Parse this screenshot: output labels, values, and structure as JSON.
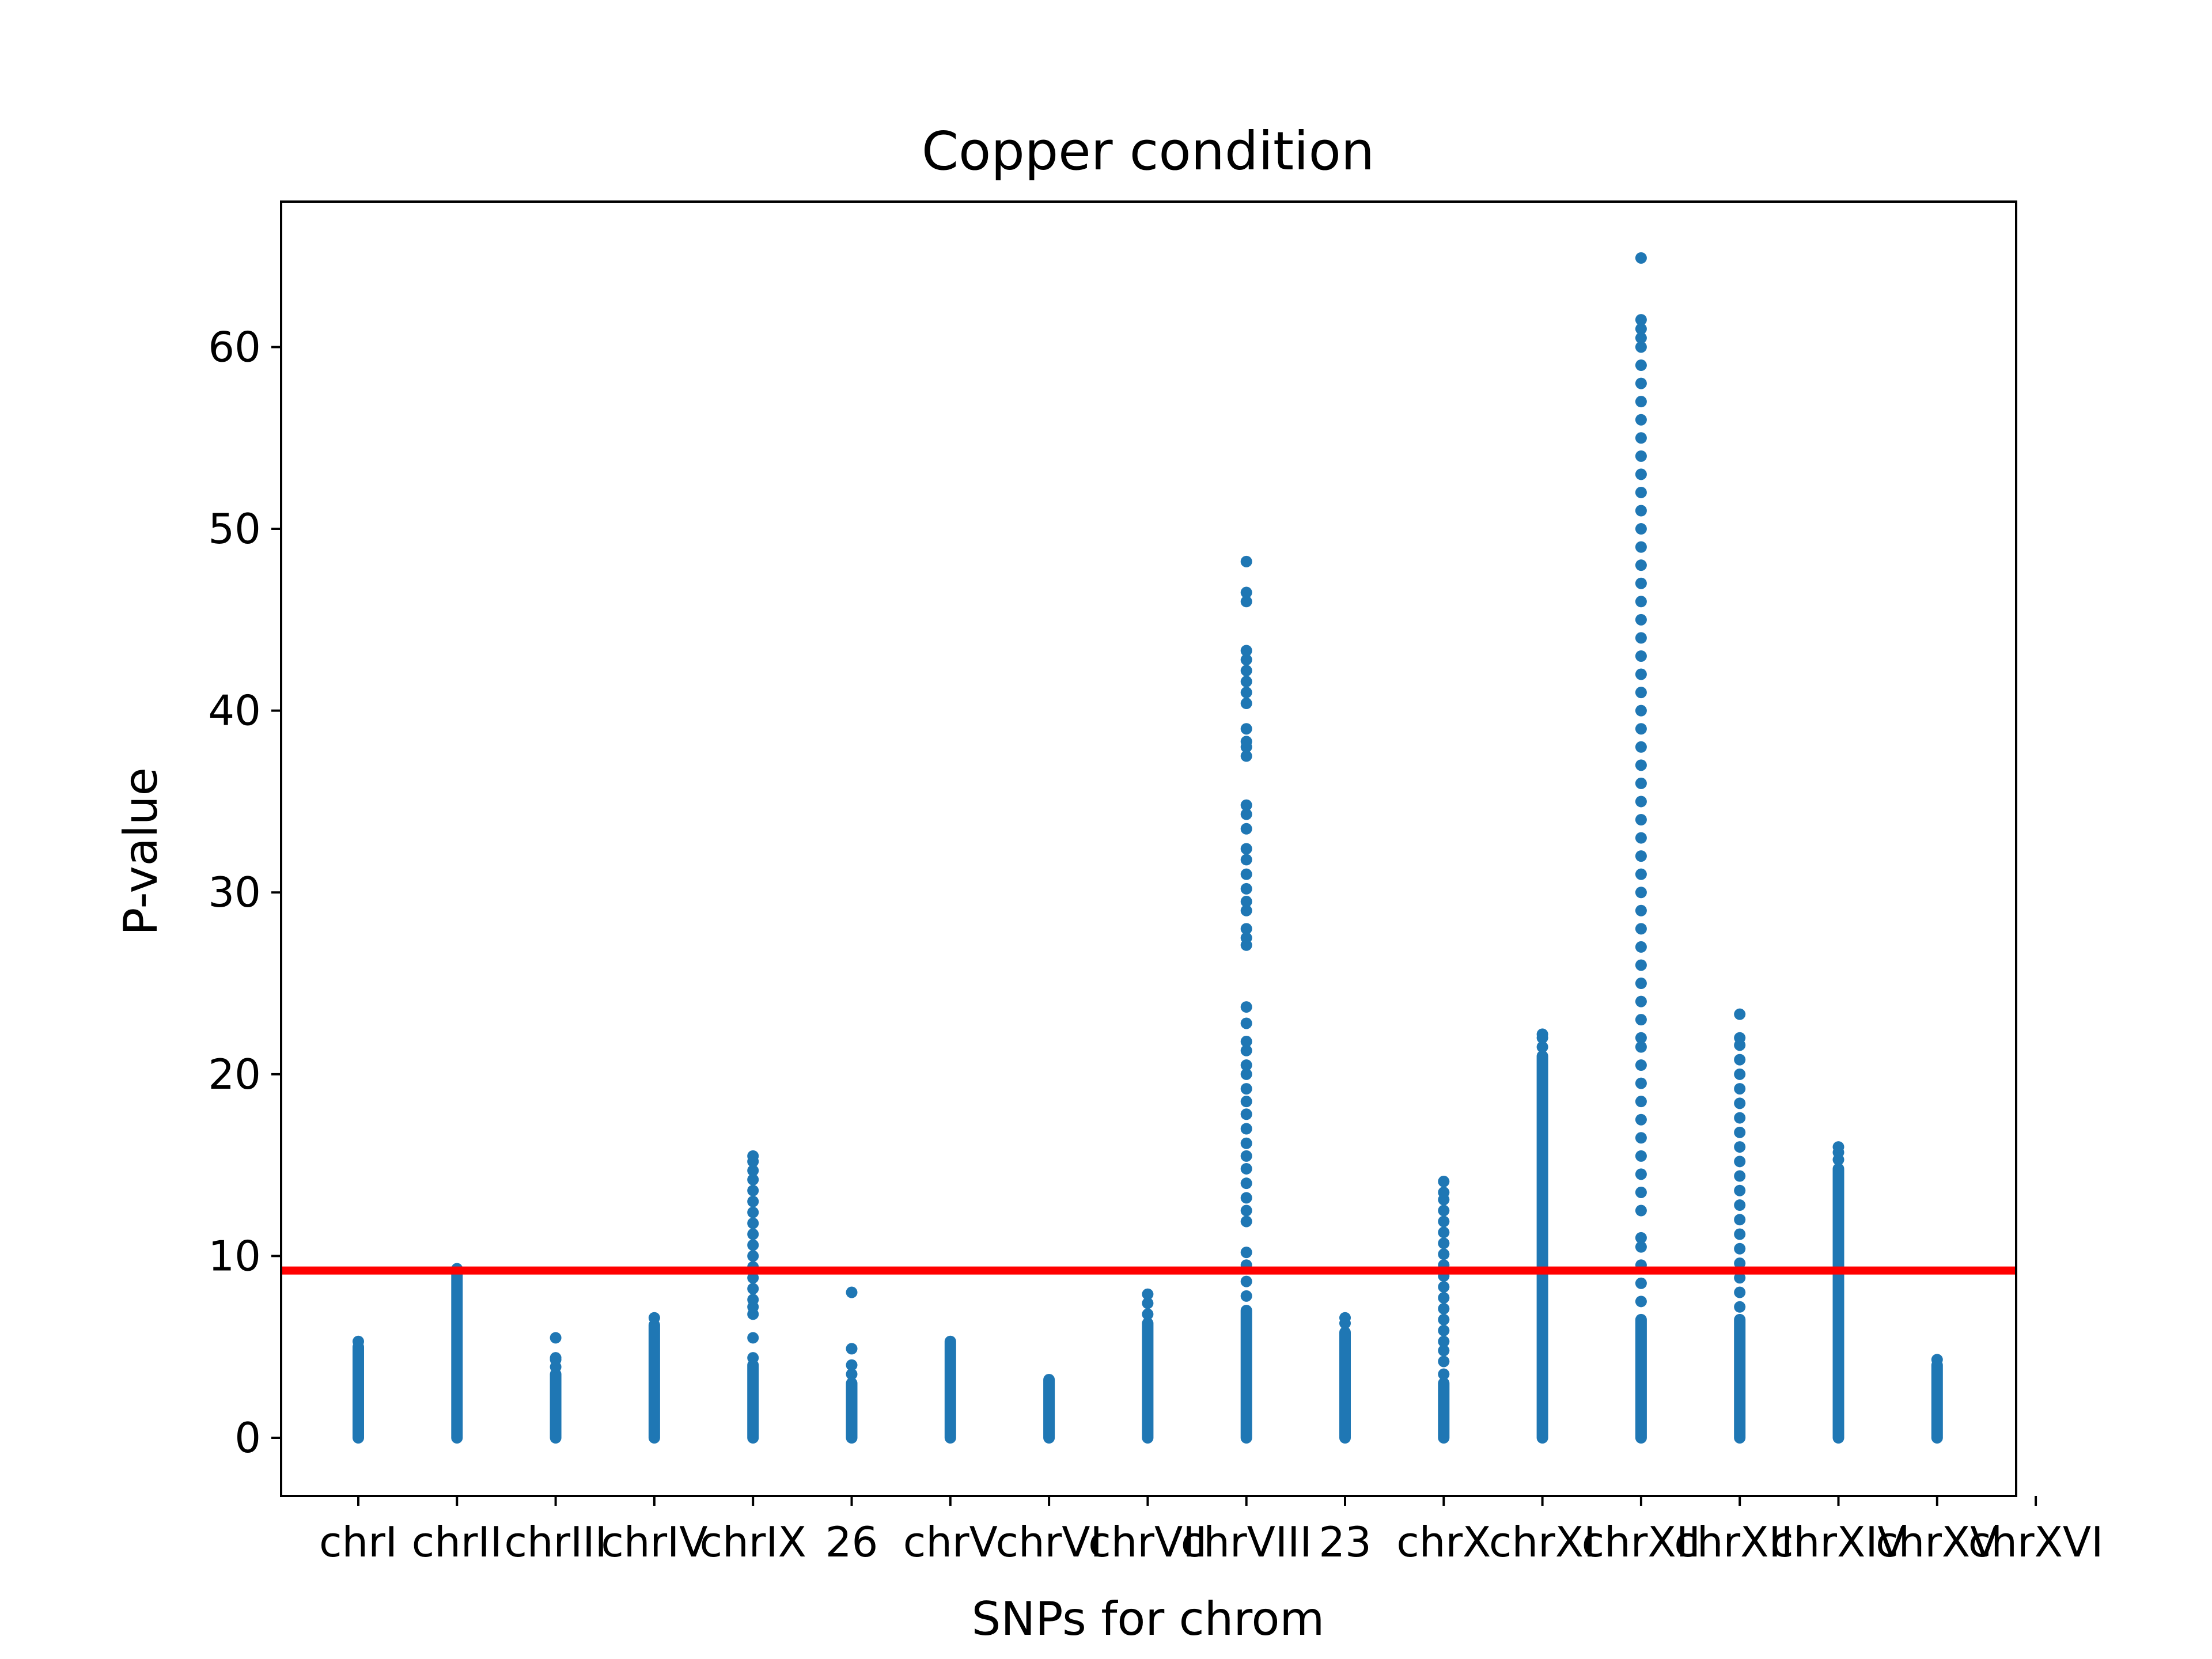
{
  "chart_data": {
    "type": "scatter",
    "title": "Copper condition",
    "xlabel": "SNPs for chrom",
    "ylabel": "P-value",
    "ylim": [
      -3.2,
      68
    ],
    "yticks": [
      0,
      10,
      20,
      30,
      40,
      50,
      60
    ],
    "grid": false,
    "legend": "none",
    "marker_color": "#1f77b4",
    "threshold": {
      "value": 9.2,
      "color": "#ff0000"
    },
    "categories": [
      "chrI",
      "chrII",
      "chrIII",
      "chrIV",
      "chrIX",
      "26",
      "chrV",
      "chrVI",
      "chrVII",
      "chrVIII",
      "23",
      "chrX",
      "chrXI",
      "chrXII",
      "chrXIII",
      "chrXIV",
      "chrXV",
      "chrXVI"
    ],
    "series": [
      {
        "category": "chrI",
        "dense": [
          0,
          5.0
        ],
        "points": [
          5.3
        ]
      },
      {
        "category": "chrII",
        "dense": [
          0,
          9.3
        ],
        "points": []
      },
      {
        "category": "chrIII",
        "dense": [
          0,
          3.5
        ],
        "points": [
          3.9,
          4.3,
          4.4,
          5.5
        ]
      },
      {
        "category": "chrIV",
        "dense": [
          0,
          6.2
        ],
        "points": [
          6.6
        ]
      },
      {
        "category": "chrIX",
        "dense": [
          0,
          4.0
        ],
        "points": [
          4.4,
          5.5,
          6.8,
          7.2,
          7.6,
          8.2,
          8.8,
          9.4,
          10.0,
          10.6,
          11.2,
          11.8,
          12.4,
          13.0,
          13.6,
          14.2,
          14.7,
          15.2,
          15.5
        ]
      },
      {
        "category": "26",
        "dense": [
          0,
          3.0
        ],
        "points": [
          3.5,
          4.0,
          4.9,
          8.0
        ]
      },
      {
        "category": "chrV",
        "dense": [
          0,
          5.3
        ],
        "points": []
      },
      {
        "category": "chrVI",
        "dense": [
          0,
          3.2
        ],
        "points": []
      },
      {
        "category": "chrVII",
        "dense": [
          0,
          6.3
        ],
        "points": [
          6.8,
          7.4,
          7.9
        ]
      },
      {
        "category": "chrVIII",
        "dense": [
          0,
          7.0
        ],
        "points": [
          7.8,
          8.6,
          9.5,
          10.2,
          11.9,
          12.5,
          13.2,
          14.0,
          14.8,
          15.5,
          16.2,
          17.0,
          17.8,
          18.5,
          19.2,
          20.0,
          20.5,
          21.3,
          21.8,
          22.8,
          23.7,
          27.1,
          27.5,
          28.0,
          29.0,
          29.5,
          30.2,
          31.0,
          31.8,
          32.4,
          33.5,
          34.3,
          34.8,
          37.5,
          38.0,
          38.3,
          39.0,
          40.4,
          41.0,
          41.6,
          42.2,
          42.8,
          43.3,
          46.0,
          46.5,
          48.2
        ]
      },
      {
        "category": "23",
        "dense": [
          0,
          5.8
        ],
        "points": [
          6.3,
          6.6
        ]
      },
      {
        "category": "chrX",
        "dense": [
          0,
          3.0
        ],
        "points": [
          3.5,
          4.2,
          4.8,
          5.3,
          5.9,
          6.5,
          7.1,
          7.7,
          8.3,
          8.9,
          9.5,
          10.1,
          10.7,
          11.3,
          11.9,
          12.5,
          13.1,
          13.5,
          14.1
        ]
      },
      {
        "category": "chrXI",
        "dense": [
          0,
          21.0
        ],
        "points": [
          21.5,
          22.0,
          22.2
        ]
      },
      {
        "category": "chrXII",
        "dense": [
          0,
          6.5
        ],
        "points": [
          7.5,
          8.5,
          9.5,
          10.5,
          11.0,
          12.5,
          13.5,
          14.5,
          15.5,
          16.5,
          17.5,
          18.5,
          19.5,
          20.5,
          21.5,
          22.0,
          23.0,
          24.0,
          25.0,
          26.0,
          27.0,
          28.0,
          29.0,
          30.0,
          31.0,
          32.0,
          33.0,
          34.0,
          35.0,
          36.0,
          37.0,
          38.0,
          39.0,
          40.0,
          41.0,
          42.0,
          43.0,
          44.0,
          45.0,
          46.0,
          47.0,
          48.0,
          49.0,
          50.0,
          51.0,
          52.0,
          53.0,
          54.0,
          55.0,
          56.0,
          57.0,
          58.0,
          59.0,
          60.0,
          60.5,
          61.0,
          61.5,
          64.9
        ]
      },
      {
        "category": "chrXIII",
        "dense": [
          0,
          6.5
        ],
        "points": [
          7.2,
          8.0,
          8.8,
          9.6,
          10.4,
          11.2,
          12.0,
          12.8,
          13.6,
          14.4,
          15.2,
          16.0,
          16.8,
          17.6,
          18.4,
          19.2,
          20.0,
          20.8,
          21.6,
          22.0,
          23.3
        ]
      },
      {
        "category": "chrXIV",
        "dense": [
          0,
          14.8
        ],
        "points": [
          15.3,
          15.7,
          16.0
        ]
      },
      {
        "category": "chrXV",
        "dense": [
          0,
          4.0
        ],
        "points": [
          4.3
        ]
      },
      {
        "category": "chrXVI",
        "dense": [],
        "points": []
      }
    ]
  }
}
